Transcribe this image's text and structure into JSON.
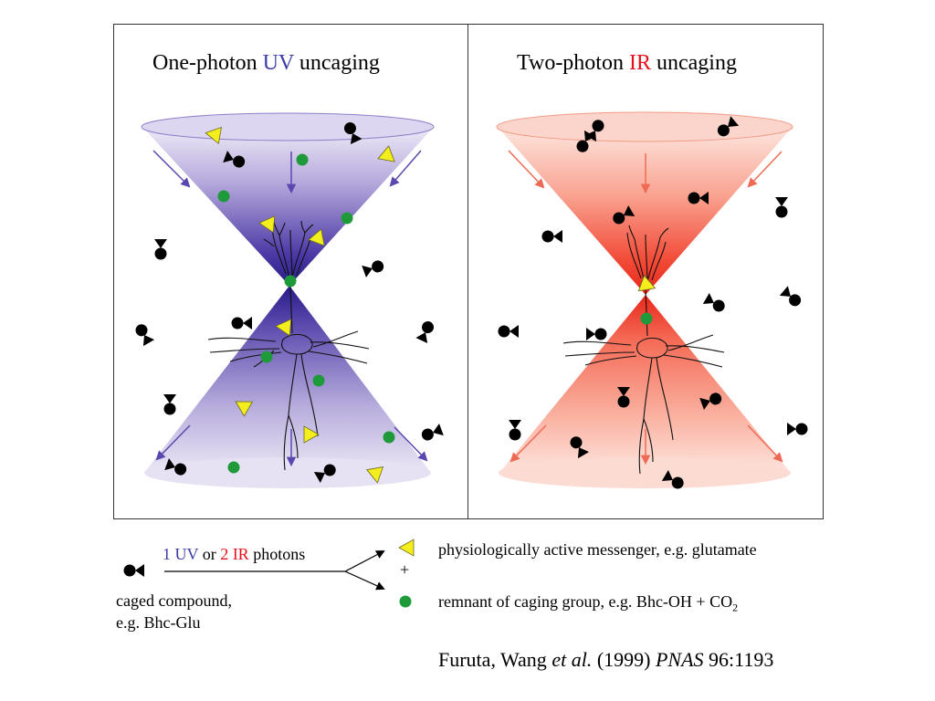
{
  "panels": {
    "left": {
      "title_pre": "One-photon ",
      "title_colored": "UV",
      "title_post": " uncaging"
    },
    "right": {
      "title_pre": "Two-photon ",
      "title_colored": "IR",
      "title_post": " uncaging"
    }
  },
  "legend": {
    "photons_n1": "1",
    "photons_uv": "UV",
    "photons_or": "or",
    "photons_n2": "2",
    "photons_ir": "IR",
    "photons_word": "photons",
    "caged_line1": "caged compound,",
    "caged_line2": "e.g. Bhc-Glu",
    "messenger": "physiologically active messenger, e.g. glutamate",
    "plus": "+",
    "remnant_pre": "remnant of caging group, e.g. Bhc-OH + CO",
    "remnant_sub": "2"
  },
  "citation": {
    "authors": "Furuta, Wang ",
    "etal": "et al.",
    "year": " (1999) ",
    "journal": "PNAS",
    "ref": " 96:1193"
  },
  "colors": {
    "uv_text": "#3c3ca8",
    "ir_text": "#e8101c",
    "uv_cone_dark": "#2c1f8f",
    "uv_cone_light": "#ece8f6",
    "ir_cone_dark": "#ef2a1f",
    "ir_cone_light": "#fde3dc",
    "messenger_fill": "#f3ee1c",
    "remnant_fill": "#1f9a3a",
    "caged_fill": "#000000"
  },
  "icons": [
    "caged-compound-icon",
    "messenger-triangle-icon",
    "remnant-dot-icon",
    "neuron-icon",
    "arrow-icon"
  ]
}
